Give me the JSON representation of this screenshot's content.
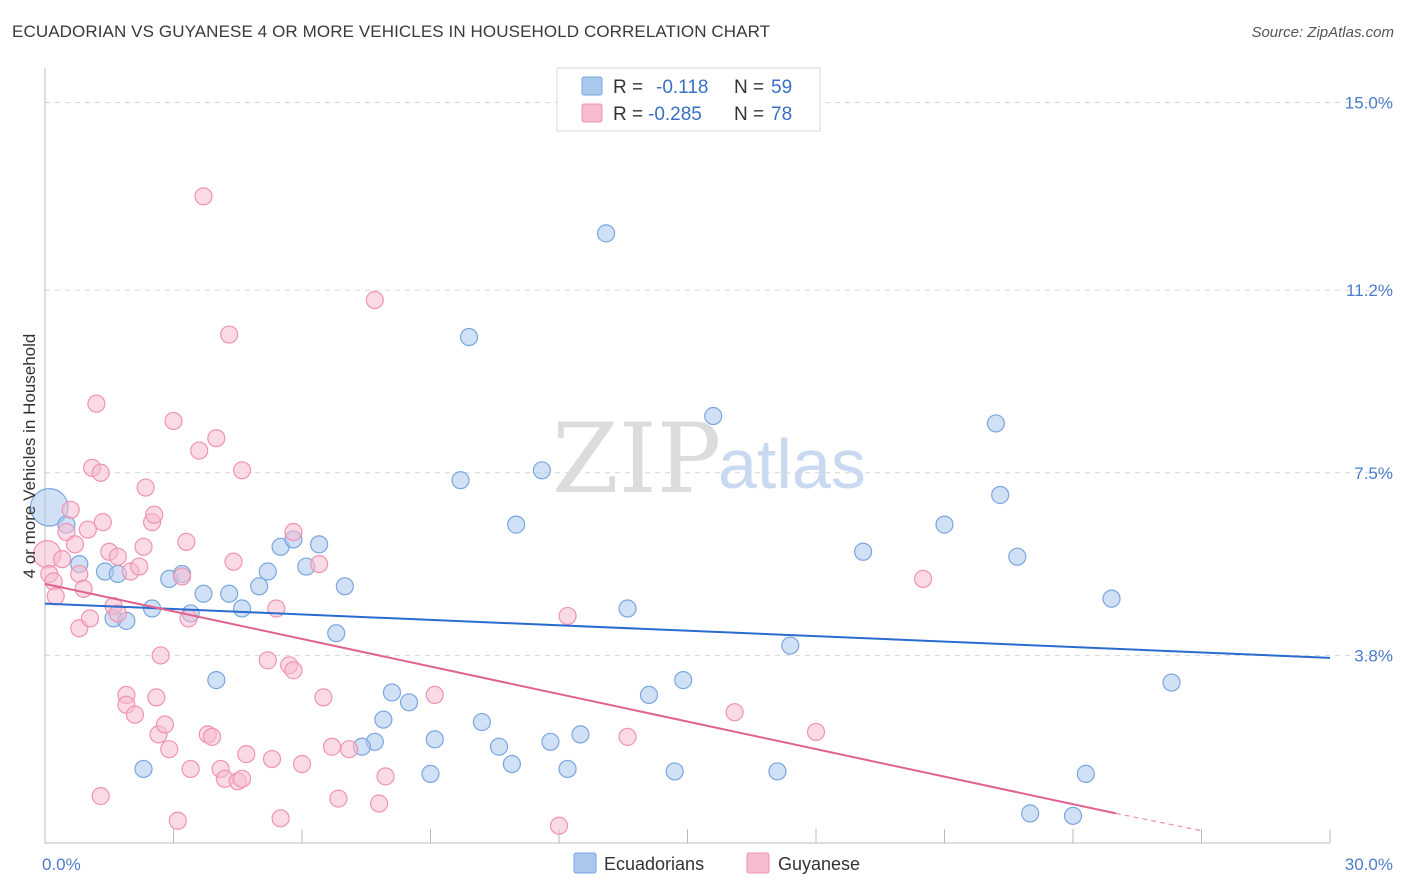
{
  "header": {
    "title": "ECUADORIAN VS GUYANESE 4 OR MORE VEHICLES IN HOUSEHOLD CORRELATION CHART",
    "source": "Source: ZipAtlas.com"
  },
  "legend": {
    "rows": [
      {
        "r_label": "R =",
        "r_value": "-0.118",
        "n_label": "N =",
        "n_value": "59"
      },
      {
        "r_label": "R =",
        "r_value": "-0.285",
        "n_label": "N =",
        "n_value": "78"
      }
    ]
  },
  "watermark": {
    "zip": "ZIP",
    "atlas": "atlas"
  },
  "colors": {
    "ecuadorians_fill": "#aac8ee",
    "ecuadorians_stroke": "#7aa6df",
    "ecuadorians_line": "#2a6bd0",
    "guyanese_fill": "#f6bcd0",
    "guyanese_stroke": "#ef93b3",
    "guyanese_line": "#e0628f",
    "grid": "#d6d6d6",
    "tick_label": "#4a7cc8"
  },
  "chart_data": {
    "type": "scatter",
    "title": "ECUADORIAN VS GUYANESE 4 OR MORE VEHICLES IN HOUSEHOLD CORRELATION CHART",
    "xlabel": "",
    "ylabel": "4 or more Vehicles in Household",
    "xlim": [
      0,
      30
    ],
    "ylim": [
      0,
      15.7
    ],
    "x_tick_labels": [
      {
        "value": 0,
        "label": "0.0%"
      },
      {
        "value": 30,
        "label": "30.0%"
      }
    ],
    "y_ticks": [
      {
        "value": 3.8,
        "label": "3.8%"
      },
      {
        "value": 7.5,
        "label": "7.5%"
      },
      {
        "value": 11.2,
        "label": "11.2%"
      },
      {
        "value": 15.0,
        "label": "15.0%"
      }
    ],
    "grid": true,
    "legend_position": "top-center",
    "bottom_legend": [
      "Ecuadorians",
      "Guyanese"
    ],
    "series": [
      {
        "name": "Ecuadorians",
        "R": -0.118,
        "N": 59,
        "trend": {
          "x0": 0,
          "y0": 4.85,
          "x1": 30,
          "y1": 3.75
        },
        "points": [
          [
            0.1,
            6.8,
            2.2
          ],
          [
            0.5,
            6.45,
            1
          ],
          [
            0.8,
            5.65,
            1
          ],
          [
            1.4,
            5.5,
            1
          ],
          [
            1.7,
            5.45,
            1
          ],
          [
            1.6,
            4.55,
            1
          ],
          [
            1.9,
            4.5,
            1
          ],
          [
            2.5,
            4.75,
            1
          ],
          [
            2.9,
            5.35,
            1
          ],
          [
            3.2,
            5.45,
            1
          ],
          [
            3.4,
            4.65,
            1
          ],
          [
            3.7,
            5.05,
            1
          ],
          [
            4.3,
            5.05,
            1
          ],
          [
            4.6,
            4.75,
            1
          ],
          [
            5.0,
            5.2,
            1
          ],
          [
            5.2,
            5.5,
            1
          ],
          [
            5.5,
            6.0,
            1
          ],
          [
            5.8,
            6.15,
            1
          ],
          [
            6.1,
            5.6,
            1
          ],
          [
            6.4,
            6.05,
            1
          ],
          [
            7.0,
            5.2,
            1
          ],
          [
            6.8,
            4.25,
            1
          ],
          [
            4.0,
            3.3,
            1
          ],
          [
            2.3,
            1.5,
            1
          ],
          [
            8.1,
            3.05,
            1
          ],
          [
            8.5,
            2.85,
            1
          ],
          [
            7.9,
            2.5,
            1
          ],
          [
            7.7,
            2.05,
            1
          ],
          [
            7.4,
            1.95,
            1
          ],
          [
            9.1,
            2.1,
            1
          ],
          [
            9.7,
            7.35,
            1
          ],
          [
            9.9,
            10.25,
            1
          ],
          [
            10.2,
            2.45,
            1
          ],
          [
            10.6,
            1.95,
            1
          ],
          [
            10.9,
            1.6,
            1
          ],
          [
            11.0,
            6.45,
            1
          ],
          [
            11.6,
            7.55,
            1
          ],
          [
            11.8,
            2.05,
            1
          ],
          [
            12.2,
            1.5,
            1
          ],
          [
            12.5,
            2.2,
            1
          ],
          [
            13.1,
            12.35,
            1
          ],
          [
            13.6,
            4.75,
            1
          ],
          [
            14.1,
            3.0,
            1
          ],
          [
            14.7,
            1.45,
            1
          ],
          [
            14.9,
            3.3,
            1
          ],
          [
            9.0,
            1.4,
            1
          ],
          [
            15.6,
            8.65,
            1
          ],
          [
            17.1,
            1.45,
            1
          ],
          [
            17.4,
            4.0,
            1
          ],
          [
            19.1,
            5.9,
            1
          ],
          [
            21.0,
            6.45,
            1
          ],
          [
            22.2,
            8.5,
            1
          ],
          [
            22.3,
            7.05,
            1
          ],
          [
            22.7,
            5.8,
            1
          ],
          [
            23.0,
            0.6,
            1
          ],
          [
            24.0,
            0.55,
            1
          ],
          [
            24.3,
            1.4,
            1
          ],
          [
            24.9,
            4.95,
            1
          ],
          [
            26.3,
            3.25,
            1
          ]
        ]
      },
      {
        "name": "Guyanese",
        "R": -0.285,
        "N": 78,
        "trend": {
          "x0": 0,
          "y0": 5.25,
          "x1": 25.0,
          "y1": 0.6,
          "dash_x1": 27.0,
          "dash_y1": 0.25
        },
        "points": [
          [
            0.05,
            5.85,
            1.6
          ],
          [
            0.1,
            5.45,
            1
          ],
          [
            0.2,
            5.3,
            1
          ],
          [
            0.25,
            5.0,
            1
          ],
          [
            0.4,
            5.75,
            1
          ],
          [
            0.5,
            6.3,
            1
          ],
          [
            0.6,
            6.75,
            1
          ],
          [
            0.7,
            6.05,
            1
          ],
          [
            0.8,
            5.45,
            1
          ],
          [
            0.9,
            5.15,
            1
          ],
          [
            0.8,
            4.35,
            1
          ],
          [
            1.0,
            6.35,
            1
          ],
          [
            1.05,
            4.55,
            1
          ],
          [
            1.1,
            7.6,
            1
          ],
          [
            1.2,
            8.9,
            1
          ],
          [
            1.3,
            7.5,
            1
          ],
          [
            1.35,
            6.5,
            1
          ],
          [
            1.5,
            5.9,
            1
          ],
          [
            1.6,
            4.8,
            1
          ],
          [
            1.7,
            5.8,
            1
          ],
          [
            1.7,
            4.65,
            1
          ],
          [
            1.9,
            3.0,
            1
          ],
          [
            1.9,
            2.8,
            1
          ],
          [
            2.1,
            2.6,
            1
          ],
          [
            2.0,
            5.5,
            1
          ],
          [
            2.2,
            5.6,
            1
          ],
          [
            2.3,
            6.0,
            1
          ],
          [
            2.35,
            7.2,
            1
          ],
          [
            2.5,
            6.5,
            1
          ],
          [
            2.55,
            6.65,
            1
          ],
          [
            2.6,
            2.95,
            1
          ],
          [
            2.65,
            2.2,
            1
          ],
          [
            2.7,
            3.8,
            1
          ],
          [
            2.8,
            2.4,
            1
          ],
          [
            2.9,
            1.9,
            1
          ],
          [
            3.0,
            8.55,
            1
          ],
          [
            3.1,
            0.45,
            1
          ],
          [
            3.2,
            5.4,
            1
          ],
          [
            3.3,
            6.1,
            1
          ],
          [
            3.35,
            4.55,
            1
          ],
          [
            3.4,
            1.5,
            1
          ],
          [
            3.6,
            7.95,
            1
          ],
          [
            3.7,
            13.1,
            1
          ],
          [
            3.8,
            2.2,
            1
          ],
          [
            3.9,
            2.15,
            1
          ],
          [
            4.0,
            8.2,
            1
          ],
          [
            4.1,
            1.5,
            1
          ],
          [
            4.2,
            1.3,
            1
          ],
          [
            4.3,
            10.3,
            1
          ],
          [
            4.4,
            5.7,
            1
          ],
          [
            4.5,
            1.25,
            1
          ],
          [
            4.6,
            1.3,
            1
          ],
          [
            4.6,
            7.55,
            1
          ],
          [
            4.7,
            1.8,
            1
          ],
          [
            5.2,
            3.7,
            1
          ],
          [
            5.3,
            1.7,
            1
          ],
          [
            5.5,
            0.5,
            1
          ],
          [
            5.4,
            4.75,
            1
          ],
          [
            5.7,
            3.6,
            1
          ],
          [
            5.8,
            3.5,
            1
          ],
          [
            5.8,
            6.3,
            1
          ],
          [
            6.0,
            1.6,
            1
          ],
          [
            6.4,
            5.65,
            1
          ],
          [
            6.5,
            2.95,
            1
          ],
          [
            6.7,
            1.95,
            1
          ],
          [
            6.85,
            0.9,
            1
          ],
          [
            7.1,
            1.9,
            1
          ],
          [
            7.7,
            11.0,
            1
          ],
          [
            7.8,
            0.8,
            1
          ],
          [
            7.95,
            1.35,
            1
          ],
          [
            9.1,
            3.0,
            1
          ],
          [
            12.0,
            0.35,
            1
          ],
          [
            12.2,
            4.6,
            1
          ],
          [
            13.6,
            2.15,
            1
          ],
          [
            16.1,
            2.65,
            1
          ],
          [
            18.0,
            2.25,
            1
          ],
          [
            20.5,
            5.35,
            1
          ],
          [
            1.3,
            0.95,
            1
          ]
        ]
      }
    ]
  }
}
